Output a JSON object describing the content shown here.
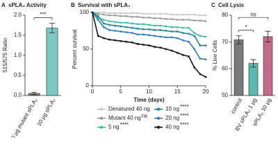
{
  "chart_data": [
    {
      "type": "bar",
      "panel": "A",
      "title": "sPLA₂ Activity",
      "y_label": "515/575 Ratio",
      "categories": [
        "10 μg mutant sPLA₂",
        "10 μg sPLA₂"
      ],
      "values": [
        0.05,
        1.68
      ],
      "errors": [
        0.03,
        0.12
      ],
      "colors": [
        "#808080",
        "#7cc7c0"
      ],
      "ylim": [
        0,
        2
      ],
      "yticks": [
        {
          "value": 0,
          "label": "0.0"
        },
        {
          "value": 0.5,
          "label": "0.5"
        },
        {
          "value": 1,
          "label": "1.0"
        },
        {
          "value": 1.5,
          "label": "1.5"
        },
        {
          "value": 2,
          "label": "2.0"
        }
      ],
      "significance": [
        "***"
      ]
    },
    {
      "type": "line",
      "panel": "B",
      "title": "Survival with sPLA₂",
      "x_label": "Time (days)",
      "y_label": "Percent survival",
      "x": [
        0,
        1,
        2,
        3,
        4,
        5,
        6,
        7,
        8,
        9,
        10,
        11,
        12,
        13,
        14,
        15,
        16,
        17,
        18,
        19,
        20
      ],
      "xlim": [
        0,
        20
      ],
      "xticks": [
        0,
        5,
        10,
        15,
        20
      ],
      "ylim": [
        0,
        100
      ],
      "yticks": [
        0,
        50,
        100
      ],
      "series": [
        {
          "name": "Denatured 40 ng",
          "significance": "",
          "color": "#c8c8c8",
          "values": [
            100,
            100,
            100,
            99,
            99,
            99,
            99,
            99,
            99,
            98,
            98,
            98,
            98,
            98,
            97,
            97,
            97,
            97,
            97,
            96,
            96
          ]
        },
        {
          "name": "Mutant 40 ng",
          "significance": "ns",
          "color": "#9a9a9a",
          "values": [
            100,
            98,
            97,
            96,
            96,
            95,
            95,
            94,
            94,
            93,
            93,
            92,
            92,
            91,
            91,
            90,
            90,
            90,
            89,
            89,
            88
          ]
        },
        {
          "name": "5 ng",
          "significance": "****",
          "color": "#3dbcaa",
          "values": [
            100,
            93,
            90,
            88,
            87,
            86,
            86,
            85,
            84,
            84,
            83,
            82,
            82,
            81,
            80,
            80,
            79,
            79,
            72,
            68,
            67
          ]
        },
        {
          "name": "10 ng",
          "significance": "****",
          "color": "#1e8290",
          "values": [
            100,
            95,
            85,
            83,
            82,
            81,
            80,
            79,
            78,
            77,
            77,
            76,
            76,
            75,
            74,
            74,
            72,
            71,
            68,
            55,
            55
          ]
        },
        {
          "name": "20 ng",
          "significance": "****",
          "color": "#2c7bb8",
          "values": [
            100,
            90,
            80,
            76,
            75,
            74,
            73,
            72,
            70,
            70,
            69,
            68,
            67,
            66,
            66,
            65,
            62,
            60,
            50,
            37,
            36
          ]
        },
        {
          "name": "40 ng",
          "significance": "****",
          "color": "#111111",
          "values": [
            100,
            68,
            65,
            63,
            62,
            61,
            60,
            59,
            57,
            56,
            55,
            53,
            52,
            50,
            48,
            45,
            42,
            40,
            25,
            16,
            12
          ]
        }
      ]
    },
    {
      "type": "bar",
      "panel": "C",
      "title": "Cell Lysis",
      "y_label": "% Live Cells",
      "categories": [
        "control",
        "BV sPLA₂ 1 μg",
        "sPLA₂ 10 μg"
      ],
      "values": [
        70.8,
        62,
        72
      ],
      "errors": [
        1.5,
        1.4,
        2
      ],
      "colors": [
        "#7a7a7a",
        "#5cb8b0",
        "#c46b8c"
      ],
      "ylim": [
        50,
        80
      ],
      "yticks": [
        50,
        60,
        70,
        80
      ],
      "significance": [
        "*",
        "ns"
      ]
    }
  ]
}
